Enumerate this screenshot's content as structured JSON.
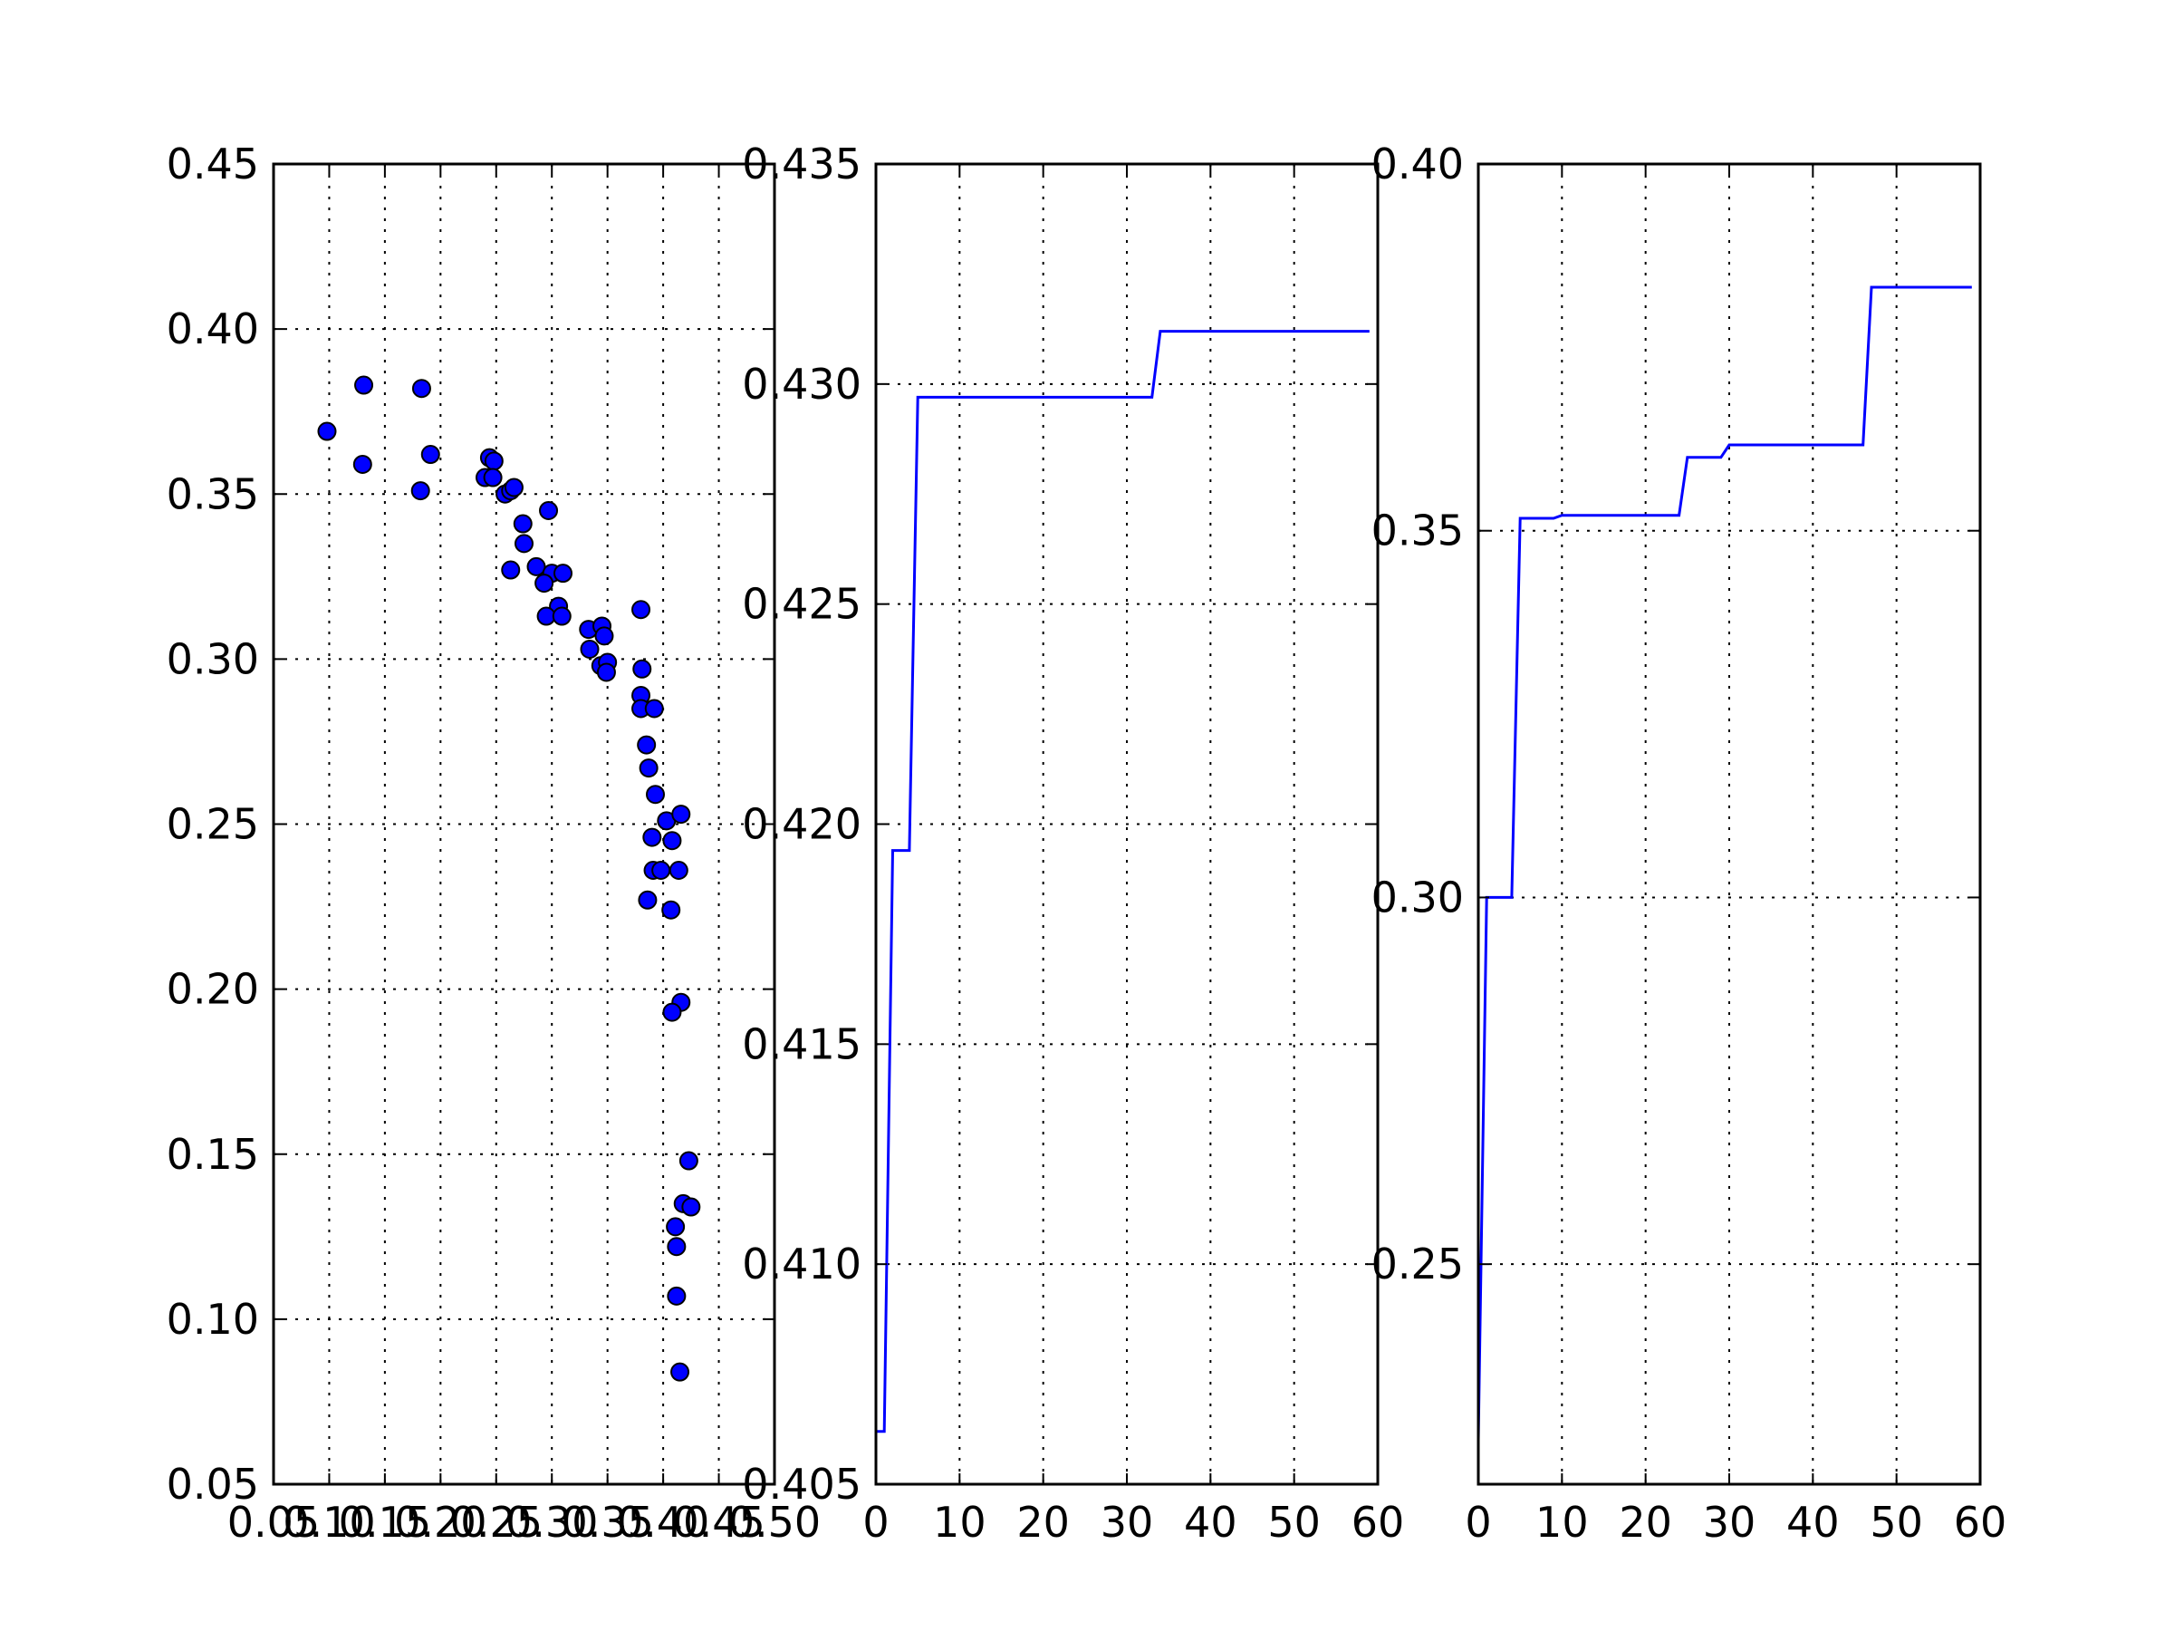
{
  "chart_data": [
    {
      "type": "scatter",
      "xlim": [
        0.05,
        0.5
      ],
      "ylim": [
        0.05,
        0.45
      ],
      "grid": true,
      "marker_color": "#0000ff",
      "x_ticks": [
        0.05,
        0.1,
        0.15,
        0.2,
        0.25,
        0.3,
        0.35,
        0.4,
        0.45,
        0.5
      ],
      "x_tick_labels": [
        "0.05",
        "0.10",
        "0.15",
        "0.20",
        "0.25",
        "0.30",
        "0.35",
        "0.40",
        "0.45",
        "0.50"
      ],
      "y_ticks": [
        0.05,
        0.1,
        0.15,
        0.2,
        0.25,
        0.3,
        0.35,
        0.4,
        0.45
      ],
      "y_tick_labels": [
        "0.05",
        "0.10",
        "0.15",
        "0.20",
        "0.25",
        "0.30",
        "0.35",
        "0.40",
        "0.45"
      ],
      "points": [
        [
          0.098,
          0.369
        ],
        [
          0.131,
          0.383
        ],
        [
          0.13,
          0.359
        ],
        [
          0.183,
          0.382
        ],
        [
          0.182,
          0.351
        ],
        [
          0.191,
          0.362
        ],
        [
          0.244,
          0.361
        ],
        [
          0.248,
          0.36
        ],
        [
          0.24,
          0.355
        ],
        [
          0.247,
          0.355
        ],
        [
          0.258,
          0.35
        ],
        [
          0.263,
          0.351
        ],
        [
          0.266,
          0.352
        ],
        [
          0.297,
          0.345
        ],
        [
          0.274,
          0.341
        ],
        [
          0.275,
          0.335
        ],
        [
          0.263,
          0.327
        ],
        [
          0.286,
          0.328
        ],
        [
          0.3,
          0.326
        ],
        [
          0.31,
          0.326
        ],
        [
          0.293,
          0.323
        ],
        [
          0.306,
          0.316
        ],
        [
          0.295,
          0.313
        ],
        [
          0.309,
          0.313
        ],
        [
          0.333,
          0.309
        ],
        [
          0.345,
          0.31
        ],
        [
          0.347,
          0.307
        ],
        [
          0.334,
          0.303
        ],
        [
          0.344,
          0.298
        ],
        [
          0.35,
          0.299
        ],
        [
          0.349,
          0.296
        ],
        [
          0.38,
          0.315
        ],
        [
          0.381,
          0.297
        ],
        [
          0.38,
          0.289
        ],
        [
          0.38,
          0.285
        ],
        [
          0.392,
          0.285
        ],
        [
          0.385,
          0.274
        ],
        [
          0.387,
          0.267
        ],
        [
          0.393,
          0.259
        ],
        [
          0.403,
          0.251
        ],
        [
          0.416,
          0.253
        ],
        [
          0.39,
          0.246
        ],
        [
          0.408,
          0.245
        ],
        [
          0.391,
          0.236
        ],
        [
          0.398,
          0.236
        ],
        [
          0.414,
          0.236
        ],
        [
          0.386,
          0.227
        ],
        [
          0.407,
          0.224
        ],
        [
          0.416,
          0.196
        ],
        [
          0.408,
          0.193
        ],
        [
          0.423,
          0.148
        ],
        [
          0.418,
          0.135
        ],
        [
          0.425,
          0.134
        ],
        [
          0.411,
          0.128
        ],
        [
          0.412,
          0.122
        ],
        [
          0.412,
          0.107
        ],
        [
          0.415,
          0.084
        ]
      ]
    },
    {
      "type": "line",
      "xlim": [
        0,
        60
      ],
      "ylim": [
        0.405,
        0.435
      ],
      "grid": true,
      "line_color": "#0000ff",
      "x_ticks": [
        0,
        10,
        20,
        30,
        40,
        50,
        60
      ],
      "x_tick_labels": [
        "0",
        "10",
        "20",
        "30",
        "40",
        "50",
        "60"
      ],
      "y_ticks": [
        0.405,
        0.41,
        0.415,
        0.42,
        0.425,
        0.43,
        0.435
      ],
      "y_tick_labels": [
        "0.405",
        "0.410",
        "0.415",
        "0.420",
        "0.425",
        "0.430",
        "0.435"
      ],
      "x": [
        0,
        1,
        2,
        4,
        5,
        33,
        34,
        59
      ],
      "y": [
        0.4062,
        0.4062,
        0.4194,
        0.4194,
        0.4297,
        0.4297,
        0.4312,
        0.4312
      ]
    },
    {
      "type": "line",
      "xlim": [
        0,
        60
      ],
      "ylim": [
        0.22,
        0.4
      ],
      "grid": true,
      "line_color": "#0000ff",
      "x_ticks": [
        0,
        10,
        20,
        30,
        40,
        50,
        60
      ],
      "x_tick_labels": [
        "0",
        "10",
        "20",
        "30",
        "40",
        "50",
        "60"
      ],
      "y_ticks": [
        0.25,
        0.3,
        0.35,
        0.4
      ],
      "y_tick_labels": [
        "0.25",
        "0.30",
        "0.35",
        "0.40"
      ],
      "x": [
        0,
        1,
        4,
        5,
        9,
        10,
        24,
        25,
        29,
        30,
        46,
        47,
        59
      ],
      "y": [
        0.226,
        0.3,
        0.3,
        0.3517,
        0.3517,
        0.3521,
        0.3521,
        0.36,
        0.36,
        0.3617,
        0.3617,
        0.3832,
        0.3832
      ]
    }
  ]
}
